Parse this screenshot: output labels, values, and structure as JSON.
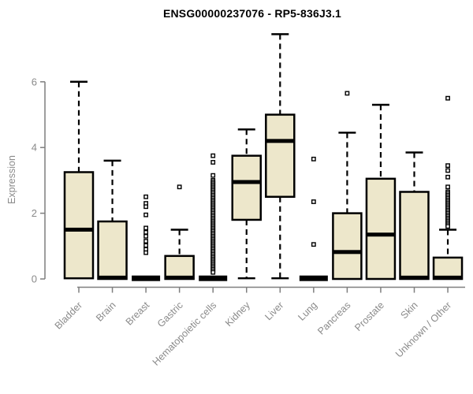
{
  "chart_data": {
    "type": "boxplot",
    "title": "ENSG00000237076 - RP5-836J3.1",
    "ylabel": "Expression",
    "xlabel": "",
    "y_ticks": [
      0,
      2,
      4,
      6
    ],
    "ylim": [
      0,
      7.6
    ],
    "grid": false,
    "legend": null,
    "categories": [
      "Bladder",
      "Brain",
      "Breast",
      "Gastric",
      "Hematopoietic cells",
      "Kidney",
      "Liver",
      "Lung",
      "Pancreas",
      "Prostate",
      "Skin",
      "Unknown / Other"
    ],
    "series": [
      {
        "name": "Bladder",
        "q1": 0.02,
        "median": 1.5,
        "q3": 3.25,
        "whisker_low": 0.02,
        "whisker_high": 6.0,
        "outliers": []
      },
      {
        "name": "Brain",
        "q1": 0.0,
        "median": 0.04,
        "q3": 1.75,
        "whisker_low": 0.0,
        "whisker_high": 3.6,
        "outliers": []
      },
      {
        "name": "Breast",
        "q1": 0.0,
        "median": 0.02,
        "q3": 0.02,
        "whisker_low": 0.0,
        "whisker_high": 0.02,
        "outliers": [
          2.5,
          2.3,
          2.2,
          1.95,
          1.55,
          1.42,
          1.3,
          1.15,
          1.02,
          0.9,
          0.8
        ]
      },
      {
        "name": "Gastric",
        "q1": 0.0,
        "median": 0.04,
        "q3": 0.7,
        "whisker_low": 0.0,
        "whisker_high": 1.5,
        "outliers": [
          2.8
        ]
      },
      {
        "name": "Hematopoietic cells",
        "q1": 0.0,
        "median": 0.02,
        "q3": 0.02,
        "whisker_low": 0.0,
        "whisker_high": 0.02,
        "outliers": [
          3.75,
          3.55,
          3.15,
          3.0,
          2.95,
          2.9,
          2.85,
          2.8,
          2.75,
          2.7,
          2.65,
          2.6,
          2.55,
          2.5,
          2.45,
          2.4,
          2.35,
          2.3,
          2.25,
          2.2,
          2.15,
          2.1,
          2.05,
          2.0,
          1.95,
          1.9,
          1.85,
          1.8,
          1.75,
          1.7,
          1.65,
          1.6,
          1.55,
          1.5,
          1.45,
          1.4,
          1.35,
          1.3,
          1.25,
          1.2,
          1.15,
          1.1,
          1.05,
          1.0,
          0.95,
          0.9,
          0.85,
          0.8,
          0.75,
          0.7,
          0.65,
          0.6,
          0.55,
          0.5,
          0.45,
          0.4,
          0.35,
          0.3,
          0.25,
          0.2
        ]
      },
      {
        "name": "Kidney",
        "q1": 1.8,
        "median": 2.95,
        "q3": 3.75,
        "whisker_low": 0.02,
        "whisker_high": 4.55,
        "outliers": []
      },
      {
        "name": "Liver",
        "q1": 2.5,
        "median": 4.2,
        "q3": 5.0,
        "whisker_low": 0.02,
        "whisker_high": 7.45,
        "outliers": []
      },
      {
        "name": "Lung",
        "q1": 0.0,
        "median": 0.02,
        "q3": 0.02,
        "whisker_low": 0.0,
        "whisker_high": 0.02,
        "outliers": [
          3.65,
          2.35,
          1.05
        ]
      },
      {
        "name": "Pancreas",
        "q1": 0.0,
        "median": 0.82,
        "q3": 2.0,
        "whisker_low": 0.0,
        "whisker_high": 4.45,
        "outliers": [
          5.65
        ]
      },
      {
        "name": "Prostate",
        "q1": 0.0,
        "median": 1.35,
        "q3": 3.05,
        "whisker_low": 0.0,
        "whisker_high": 5.3,
        "outliers": []
      },
      {
        "name": "Skin",
        "q1": 0.0,
        "median": 0.04,
        "q3": 2.65,
        "whisker_low": 0.0,
        "whisker_high": 3.85,
        "outliers": []
      },
      {
        "name": "Unknown / Other",
        "q1": 0.0,
        "median": 0.04,
        "q3": 0.65,
        "whisker_low": 0.0,
        "whisker_high": 1.5,
        "outliers": [
          5.5,
          3.45,
          3.3,
          3.1,
          2.8,
          2.65,
          2.6,
          2.55,
          2.5,
          2.45,
          2.4,
          2.35,
          2.3,
          2.25,
          2.2,
          2.15,
          2.1,
          2.05,
          2.0,
          1.95,
          1.9,
          1.85,
          1.8,
          1.75,
          1.7,
          1.65,
          1.6
        ]
      }
    ],
    "colors": {
      "box_fill": "#EDE7CB",
      "box_border": "#000000",
      "median": "#000000",
      "whisker": "#000000",
      "axis": "#7F7F7F",
      "tick_label": "#8A8A8A",
      "title": "#000000",
      "background": "#FFFFFF"
    }
  }
}
